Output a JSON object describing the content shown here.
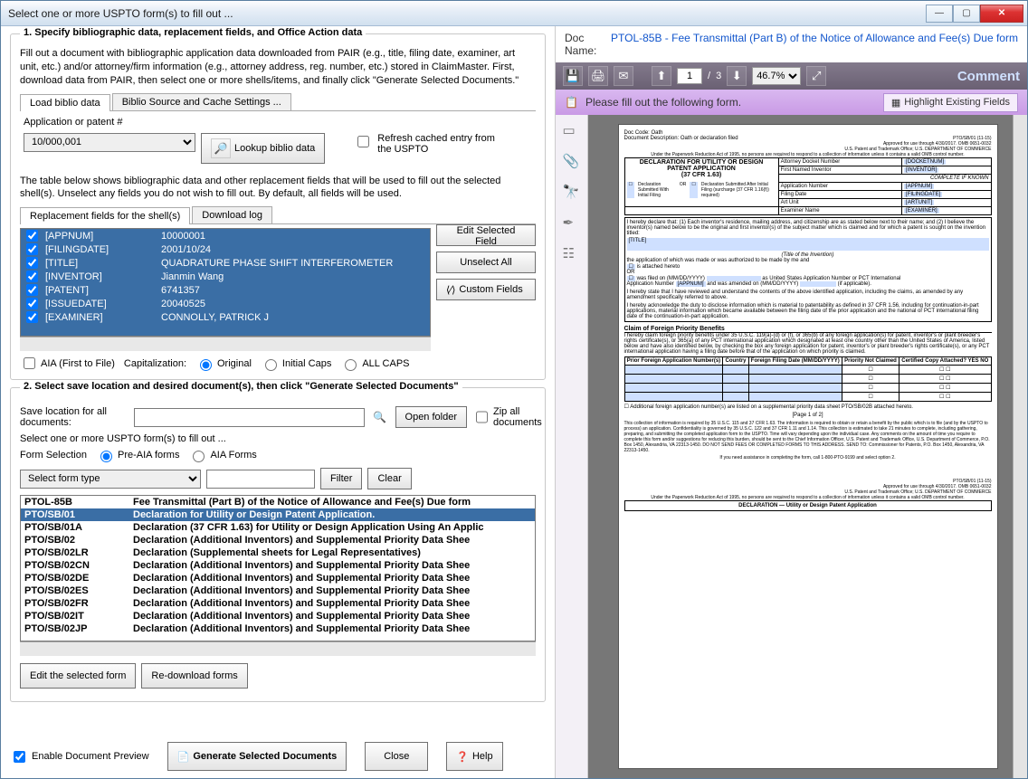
{
  "window": {
    "title": "Select one or more USPTO form(s) to fill out ..."
  },
  "titlebar_faded": {
    "a": "",
    "b": "",
    "c": ""
  },
  "winbtns": {
    "min": "—",
    "max": "▢",
    "close": "✕"
  },
  "section1": {
    "title": "1. Specify bibliographic data, replacement fields, and Office Action data",
    "desc": "Fill out a document with bibliographic application data downloaded from PAIR (e.g., title, filing date, examiner, art unit, etc.) and/or attorney/firm information (e.g., attorney address, reg. number, etc.) stored in ClaimMaster. First, download data from PAIR, then select one or more shells/items, and finally click \"Generate Selected Documents.\"",
    "tab1": "Load biblio data",
    "tab2": "Biblio Source and Cache Settings ...",
    "app_label": "Application or patent #",
    "app_value": "10/000,001",
    "lookup_btn": "Lookup biblio data",
    "refresh_label": "Refresh cached entry from the USPTO",
    "table_desc": "The table below shows bibliographic data and other replacement fields that will be used to fill out the selected shell(s). Unselect any fields you do not wish to fill out. By default, all fields will be used.",
    "repl_tab1": "Replacement fields for the shell(s)",
    "repl_tab2": "Download log",
    "edit_btn": "Edit Selected Field",
    "unselect_btn": "Unselect All",
    "custom_btn": "Custom Fields",
    "aia_cb": "AIA (First to File)",
    "cap_label": "Capitalization:",
    "cap_orig": "Original",
    "cap_init": "Initial Caps",
    "cap_all": "ALL CAPS"
  },
  "fields": [
    {
      "k": "[APPNUM]",
      "v": "10000001"
    },
    {
      "k": "[FILINGDATE]",
      "v": "2001/10/24"
    },
    {
      "k": "[TITLE]",
      "v": "QUADRATURE PHASE SHIFT INTERFEROMETER"
    },
    {
      "k": "[INVENTOR]",
      "v": "Jianmin Wang"
    },
    {
      "k": "[PATENT]",
      "v": "6741357"
    },
    {
      "k": "[ISSUEDATE]",
      "v": "20040525"
    },
    {
      "k": "[EXAMINER]",
      "v": "CONNOLLY, PATRICK J"
    }
  ],
  "section2": {
    "title": "2. Select save location and desired document(s), then click \"Generate Selected Documents\"",
    "save_label": "Save location for all documents:",
    "open_folder": "Open folder",
    "zip_label": "Zip all documents",
    "select_forms": "Select one or more USPTO form(s) to fill out ...",
    "form_sel_label": "Form Selection",
    "preaia": "Pre-AIA forms",
    "aia": "AIA Forms",
    "type_select": "Select form type",
    "filter": "Filter",
    "clear": "Clear",
    "edit_form_btn": "Edit the selected form",
    "redownload_btn": "Re-download forms"
  },
  "forms": [
    {
      "c": "PTOL-85B",
      "d": "Fee Transmittal (Part B) of the Notice of Allowance and Fee(s) Due form",
      "sel": false
    },
    {
      "c": "PTO/SB/01",
      "d": "Declaration for Utility or Design Patent Application.",
      "sel": true
    },
    {
      "c": "PTO/SB/01A",
      "d": "Declaration (37 CFR 1.63) for Utility or Design Application Using An Applic",
      "sel": false
    },
    {
      "c": "PTO/SB/02",
      "d": "Declaration (Additional Inventors) and Supplemental Priority Data Shee",
      "sel": false
    },
    {
      "c": "PTO/SB/02LR",
      "d": "Declaration (Supplemental sheets for Legal Representatives)",
      "sel": false
    },
    {
      "c": "PTO/SB/02CN",
      "d": "Declaration (Additional Inventors) and Supplemental Priority Data Shee",
      "sel": false
    },
    {
      "c": "PTO/SB/02DE",
      "d": "Declaration (Additional Inventors) and Supplemental Priority Data Shee",
      "sel": false
    },
    {
      "c": "PTO/SB/02ES",
      "d": "Declaration (Additional Inventors) and Supplemental Priority Data Shee",
      "sel": false
    },
    {
      "c": "PTO/SB/02FR",
      "d": "Declaration (Additional Inventors) and Supplemental Priority Data Shee",
      "sel": false
    },
    {
      "c": "PTO/SB/02IT",
      "d": "Declaration (Additional Inventors) and Supplemental Priority Data Shee",
      "sel": false
    },
    {
      "c": "PTO/SB/02JP",
      "d": "Declaration (Additional Inventors) and Supplemental Priority Data Shee",
      "sel": false
    }
  ],
  "bottom": {
    "enable_preview": "Enable Document Preview",
    "generate": "Generate Selected Documents",
    "close": "Close",
    "help": "Help"
  },
  "docname": {
    "key": "Doc Name:",
    "value": "PTOL-85B - Fee Transmittal (Part B) of the Notice of Allowance and Fee(s) Due form"
  },
  "pdfbar": {
    "page": "1",
    "pages": "3",
    "zoom": "46.7%",
    "comment": "Comment"
  },
  "purple": {
    "msg": "Please fill out the following form.",
    "highlight": "Highlight Existing Fields"
  },
  "pdfdoc": {
    "doccode": "Doc Code: Oath",
    "docdesc": "Document Description: Oath or declaration filed",
    "header_right1": "PTO/SB/01 (11-15)",
    "header_right2": "Approved for use through 4/30/2017. OMB 0651-0032",
    "header_right3": "U.S. Patent and Trademark Office; U.S. DEPARTMENT OF COMMERCE",
    "header_right4": "Under the Paperwork Reduction Act of 1995, no persons are required to respond to a collection of information unless it contains a valid OMB control number.",
    "decl_title1": "DECLARATION FOR UTILITY OR DESIGN",
    "decl_title2": "PATENT APPLICATION",
    "decl_title3": "(37 CFR 1.63)",
    "rt": {
      "r1k": "Attorney Docket Number",
      "r1v": "[DOCKETNUM]",
      "r2k": "First Named Inventor",
      "r2v": "[INVENTOR]",
      "r2note": "COMPLETE IF KNOWN",
      "r3k": "Application Number",
      "r3v": "[APPNUM]",
      "r4k": "Filing Date",
      "r4v": "[FILINGDATE]",
      "r5k": "Art Unit",
      "r5v": "[ARTUNIT]",
      "r6k": "Examiner Name",
      "r6v": "[EXAMINER]"
    },
    "decl_sub": "Declaration Submitted With Initial Filing",
    "decl_or": "OR",
    "decl_after": "Declaration Submitted After Initial Filing (surcharge (37 CFR 1.16(f)) required)",
    "para1": "I hereby declare that: (1) Each inventor's residence, mailing address, and citizenship are as stated below next to their name; and (2) I believe the inventor(s) named below to be the original and first inventor(s) of the subject matter which is claimed and for which a patent is sought on the invention titled:",
    "title_ph": "[TITLE]",
    "title_note": "(Title of the Invention)",
    "para2": "the application of which was made or was authorized to be made by me and",
    "cb1": "is attached hereto",
    "or": "OR",
    "cb2_a": "was filed on (MM/DD/YYYY)",
    "cb2_b": "as United States Application Number or PCT International",
    "cb2_c": "Application Number",
    "cb2_appnum": "[APPNUM]",
    "cb2_d": "and was amended on (MM/DD/YYYY)",
    "cb2_e": "(if applicable).",
    "para3": "I hereby state that I have reviewed and understand the contents of the above identified application, including the claims, as amended by any amendment specifically referred to above.",
    "para4": "I hereby acknowledge the duty to disclose information which is material to patentability as defined in 37 CFR 1.56, including for continuation-in-part applications, material information which became available between the filing date of the prior application and the national or PCT international filing date of the continuation-in-part application.",
    "claim_head": "Claim of Foreign Priority Benefits",
    "claim_para": "I hereby claim foreign priority benefits under 35 U.S.C. 119(a)-(d) or (f), or 365(b) of any foreign application(s) for patent, inventor's or plant breeder's rights certificate(s), or 365(a) of any PCT international application which designated at least one country other than the United States of America, listed below and have also identified below, by checking the box any foreign application for patent, inventor's or plant breeder's rights certificate(s), or any PCT international application having a filing date before that of the application on which priority is claimed.",
    "th1": "Prior Foreign Application Number(s)",
    "th2": "Country",
    "th3": "Foreign Filing Date (MM/DD/YYYY)",
    "th4": "Priority Not Claimed",
    "th5": "Certified Copy Attached? YES    NO",
    "addl": "Additional foreign application number(s) are listed on a supplemental priority data sheet PTO/SB/02B attached hereto.",
    "pageno": "[Page 1 of 2]",
    "footer1": "This collection of information is required by 35 U.S.C. 115 and 37 CFR 1.63. The information is required to obtain or retain a benefit by the public which is to file (and by the USPTO to process) an application. Confidentiality is governed by 35 U.S.C. 122 and 37 CFR 1.11 and 1.14. This collection is estimated to take 21 minutes to complete, including gathering, preparing, and submitting the completed application form to the USPTO. Time will vary depending upon the individual case. Any comments on the amount of time you require to complete this form and/or suggestions for reducing this burden, should be sent to the Chief Information Officer, U.S. Patent and Trademark Office, U.S. Department of Commerce, P.O. Box 1450, Alexandria, VA 22313-1450. DO NOT SEND FEES OR COMPLETED FORMS TO THIS ADDRESS. SEND TO: Commissioner for Patents, P.O. Box 1450, Alexandria, VA 22313-1450.",
    "footer2": "If you need assistance in completing the form, call 1-800-PTO-9199 and select option 2.",
    "page2_head": "DECLARATION — Utility or Design Patent Application"
  }
}
